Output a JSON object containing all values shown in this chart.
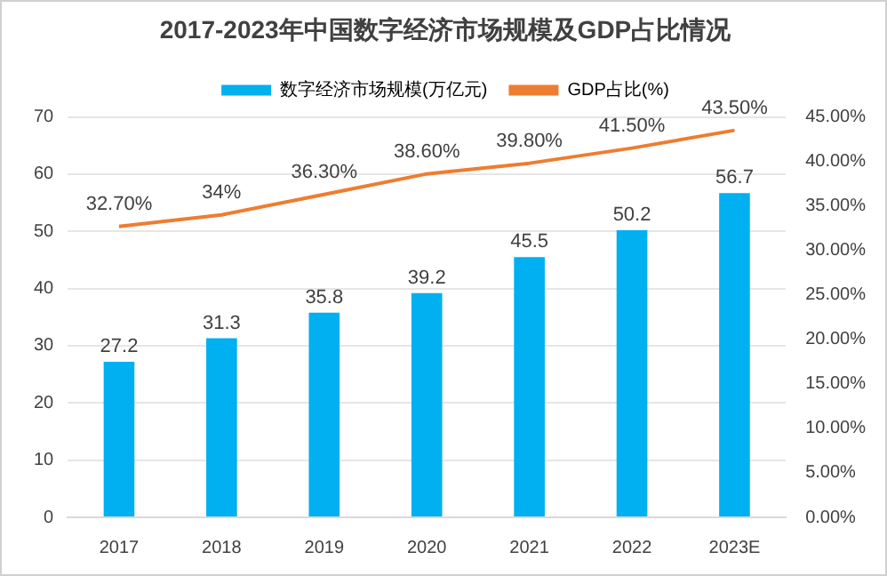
{
  "chart_data": {
    "type": "bar",
    "title": "2017-2023年中国数字经济市场规模及GDP占比情况",
    "categories": [
      "2017",
      "2018",
      "2019",
      "2020",
      "2021",
      "2022",
      "2023E"
    ],
    "series": [
      {
        "name": "数字经济市场规模(万亿元)",
        "color": "#00b0f0",
        "values": [
          27.2,
          31.3,
          35.8,
          39.2,
          45.5,
          50.2,
          56.7
        ],
        "value_labels": [
          "27.2",
          "31.3",
          "35.8",
          "39.2",
          "45.5",
          "50.2",
          "56.7"
        ]
      },
      {
        "name": "GDP占比(%)",
        "type": "line",
        "axis": "y2",
        "color": "#ed7d31",
        "values": [
          32.7,
          34,
          36.3,
          38.6,
          39.8,
          41.5,
          43.5
        ],
        "value_labels": [
          "32.70%",
          "34%",
          "36.30%",
          "38.60%",
          "39.80%",
          "41.50%",
          "43.50%"
        ]
      }
    ],
    "ylim": [
      0,
      70
    ],
    "yticks": [
      0,
      10,
      20,
      30,
      40,
      50,
      60,
      70
    ],
    "y2lim": [
      0,
      45
    ],
    "y2ticks": [
      {
        "value": 0,
        "label": "0.00%"
      },
      {
        "value": 5,
        "label": "5.00%"
      },
      {
        "value": 10,
        "label": "10.00%"
      },
      {
        "value": 15,
        "label": "15.00%"
      },
      {
        "value": 20,
        "label": "20.00%"
      },
      {
        "value": 25,
        "label": "25.00%"
      },
      {
        "value": 30,
        "label": "30.00%"
      },
      {
        "value": 35,
        "label": "35.00%"
      },
      {
        "value": 40,
        "label": "40.00%"
      },
      {
        "value": 45,
        "label": "45.00%"
      }
    ],
    "grid": "y",
    "legend": "top",
    "marker": "none"
  }
}
